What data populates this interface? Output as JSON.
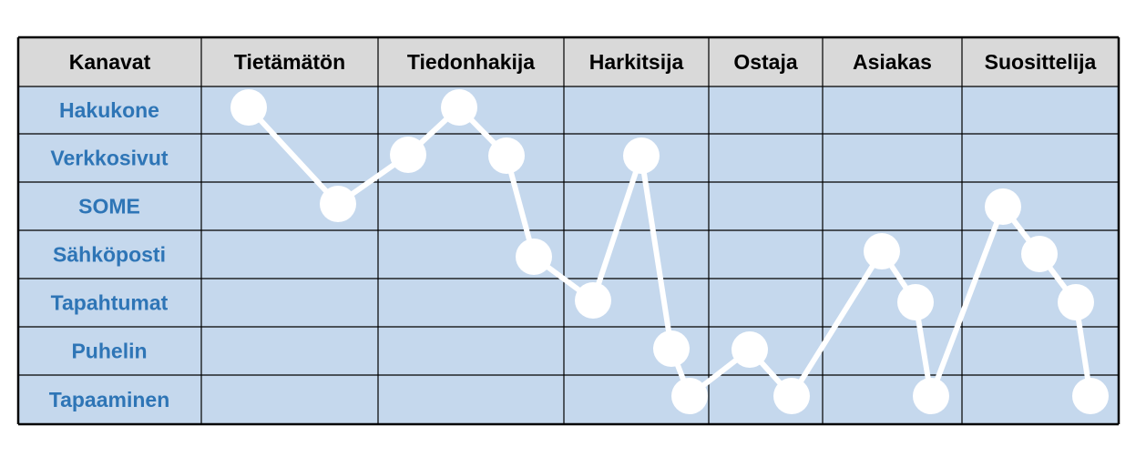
{
  "table": {
    "header": [
      "Kanavat",
      "Tietämätön",
      "Tiedonhakija",
      "Harkitsija",
      "Ostaja",
      "Asiakas",
      "Suosittelija"
    ],
    "rows": [
      "Hakukone",
      "Verkkosivut",
      "SOME",
      "Sähköposti",
      "Tapahtumat",
      "Puhelin",
      "Tapaaminen"
    ]
  }
}
